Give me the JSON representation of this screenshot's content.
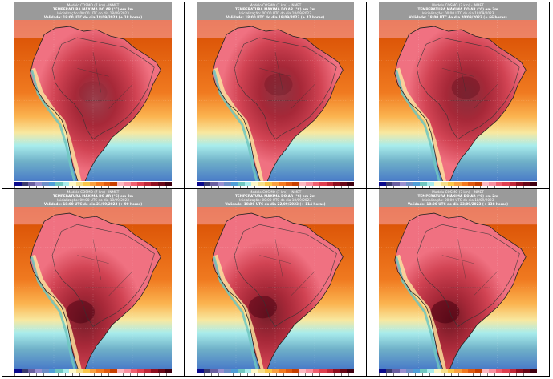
{
  "figure": {
    "layout": "2 rows x 3 columns",
    "model": "Modelo COSMO (7 km) - INMET",
    "variable": "TEMPERATURA MÁXIMA DO AR (°C) em 2m",
    "initialization": "Inicialização: 00:00 UTC do dia 18/09/2023",
    "colorbar_colors": [
      "#0a0a8c",
      "#3b3b6e",
      "#6a5fa0",
      "#9a90d0",
      "#6e8fc8",
      "#4f9fd8",
      "#6fc7c0",
      "#a8ecec",
      "#fdf8c8",
      "#f7e08a",
      "#fbc84a",
      "#f9a040",
      "#f47a20",
      "#e05a10",
      "#c84000",
      "#fcb8c0",
      "#f890a0",
      "#ef6070",
      "#e04050",
      "#c02838",
      "#901020",
      "#6a0818",
      "#400010"
    ],
    "panels": [
      {
        "id": "p1",
        "validity": "Validade: 18:00 UTC do dia 18/09/2023 (+ 18 horas)",
        "heat": 0.55,
        "core_x": 0.5,
        "core_y": 0.45
      },
      {
        "id": "p2",
        "validity": "Validade: 18:00 UTC do dia 19/09/2023 (+ 42 horas)",
        "heat": 0.65,
        "core_x": 0.52,
        "core_y": 0.4
      },
      {
        "id": "p3",
        "validity": "Validade: 18:00 UTC do dia 20/09/2023 (+ 66 horas)",
        "heat": 0.7,
        "core_x": 0.55,
        "core_y": 0.42
      },
      {
        "id": "p4",
        "validity": "Validade: 18:00 UTC do dia 21/09/2023 (+ 90 horas)",
        "heat": 0.85,
        "core_x": 0.42,
        "core_y": 0.65
      },
      {
        "id": "p5",
        "validity": "Validade: 18:00 UTC do dia 22/09/2023 (+ 114 horas)",
        "heat": 0.85,
        "core_x": 0.42,
        "core_y": 0.62
      },
      {
        "id": "p6",
        "validity": "Validade: 18:00 UTC do dia 23/09/2023 (+ 138 horas)",
        "heat": 0.9,
        "core_x": 0.42,
        "core_y": 0.65
      }
    ]
  }
}
